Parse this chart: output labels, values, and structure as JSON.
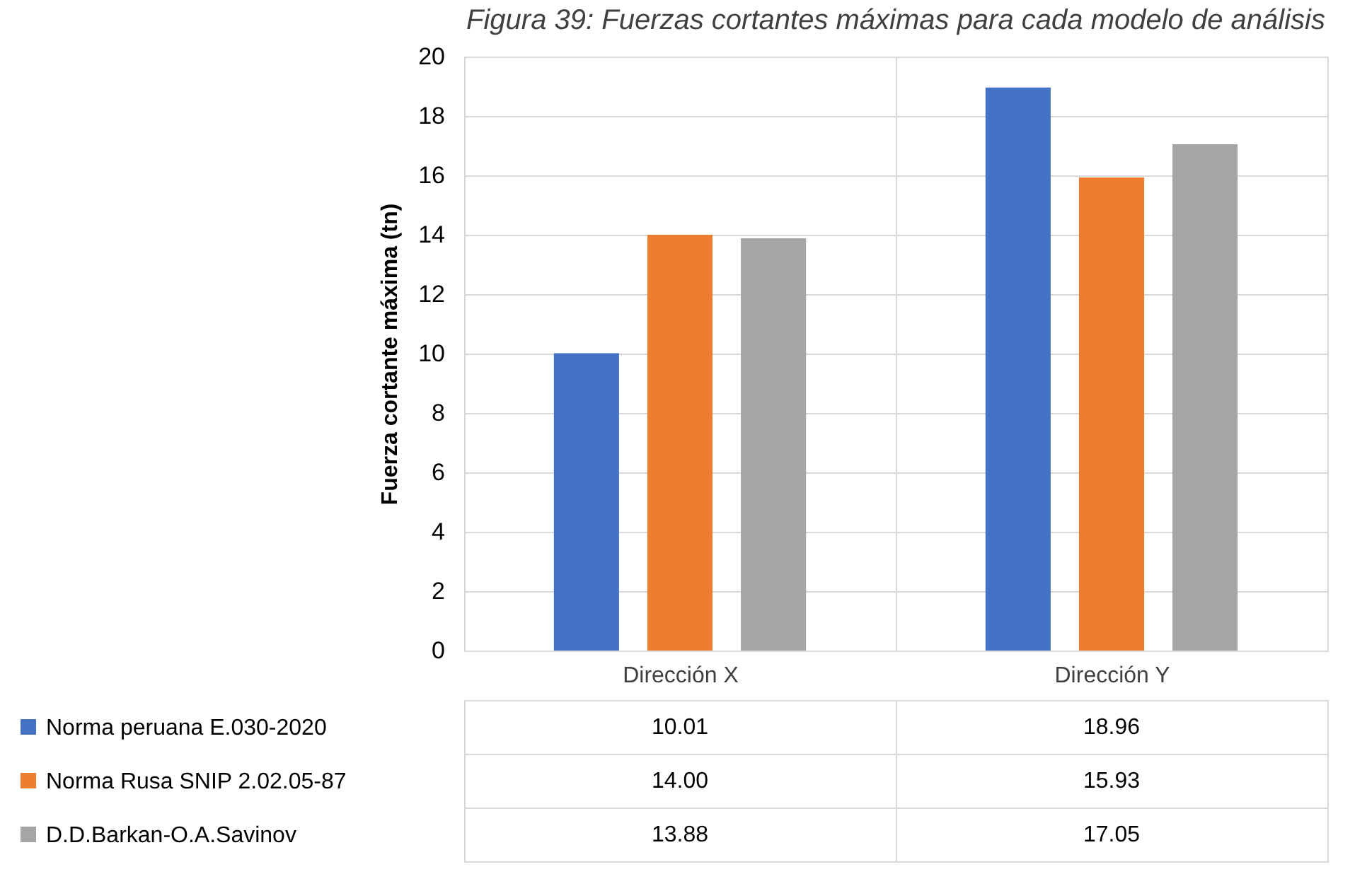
{
  "chart_data": {
    "type": "bar",
    "title": "Figura 39: Fuerzas cortantes máximas para cada modelo de análisis",
    "ylabel": "Fuerza cortante máxima (tn)",
    "categories": [
      "Dirección X",
      "Dirección Y"
    ],
    "series": [
      {
        "name": "Norma peruana E.030-2020",
        "color": "#4472c4",
        "values": [
          10.01,
          18.96
        ],
        "value_labels": [
          "10.01",
          "18.96"
        ]
      },
      {
        "name": "Norma Rusa SNIP 2.02.05-87",
        "color": "#ed7d31",
        "values": [
          14.0,
          15.93
        ],
        "value_labels": [
          "14.00",
          "15.93"
        ]
      },
      {
        "name": "D.D.Barkan-O.A.Savinov",
        "color": "#a5a5a5",
        "values": [
          13.88,
          17.05
        ],
        "value_labels": [
          "13.88",
          "17.05"
        ]
      }
    ],
    "ylim": [
      0,
      20
    ],
    "yticks": [
      0,
      2,
      4,
      6,
      8,
      10,
      12,
      14,
      16,
      18,
      20
    ],
    "grid": "y",
    "legend": "bottom"
  }
}
